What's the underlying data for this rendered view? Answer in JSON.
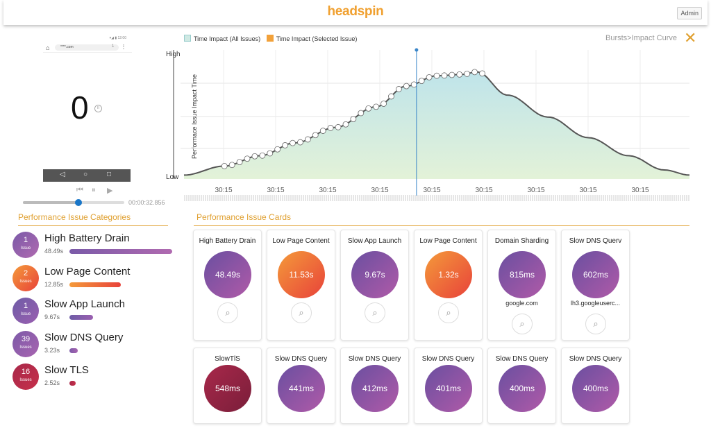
{
  "header": {
    "logo": "headspin",
    "admin_label": "Admin"
  },
  "device": {
    "status_icons": "▾◢ ▮ 12:00",
    "url": "****.com",
    "tab_count": "1",
    "display_number": "0",
    "pause_glyph": "II",
    "nav_back": "◁",
    "nav_home": "○",
    "nav_recent": "□"
  },
  "player": {
    "prev_icon": "⏮",
    "pause_icon": "⏸",
    "play_icon": "▶",
    "progress": 0.55,
    "time": "00:00:32.856"
  },
  "categories_panel": {
    "title": "Performance Issue Categories",
    "items": [
      {
        "count": "1",
        "unit": "Issue",
        "name": "High Battery Drain",
        "time": "48.49s",
        "bar_fraction": 1.0,
        "color1": "#7a5aa8",
        "color2": "#b06ab0"
      },
      {
        "count": "2",
        "unit": "Issues",
        "name": "Low Page Content",
        "time": "12.85s",
        "bar_fraction": 0.5,
        "color1": "#f49a3a",
        "color2": "#e8423a"
      },
      {
        "count": "1",
        "unit": "Issue",
        "name": "Slow App Launch",
        "time": "9.67s",
        "bar_fraction": 0.23,
        "color1": "#6e5ca6",
        "color2": "#9a5fb0"
      },
      {
        "count": "39",
        "unit": "Issues",
        "name": "Slow DNS Query",
        "time": "3.23s",
        "bar_fraction": 0.08,
        "color1": "#7c5aa8",
        "color2": "#a864b0"
      },
      {
        "count": "16",
        "unit": "Issues",
        "name": "Slow TLS",
        "time": "2.52s",
        "bar_fraction": 0.06,
        "color1": "#a8284a",
        "color2": "#c6304a"
      }
    ]
  },
  "chart": {
    "legend_all": "Time Impact (All Issues)",
    "legend_selected": "Time Impact (Selected Issue)",
    "legend_all_color": "#cfe9e3",
    "legend_selected_color": "#f2a13a",
    "breadcrumb": "Bursts>Impact Curve",
    "close_icon": "✕",
    "y_high": "High",
    "y_low": "Low",
    "y_title": "Performace Issue Impact Time"
  },
  "chart_data": {
    "type": "area",
    "title": "",
    "xlabel": "",
    "ylabel": "Performace Issue Impact Time",
    "ylim": [
      0,
      1
    ],
    "x_tick_labels": [
      "30:15",
      "30:15",
      "30:15",
      "30:15",
      "30:15",
      "30:15",
      "30:15",
      "30:15",
      "30:15"
    ],
    "curve_x": [
      0,
      0.08,
      0.15,
      0.22,
      0.3,
      0.38,
      0.44,
      0.5,
      0.55,
      0.58,
      0.64,
      0.72,
      0.8,
      0.88,
      0.95,
      1.0
    ],
    "curve_y": [
      0.03,
      0.1,
      0.18,
      0.28,
      0.4,
      0.56,
      0.72,
      0.8,
      0.81,
      0.83,
      0.65,
      0.48,
      0.32,
      0.18,
      0.07,
      0.03
    ],
    "marker_points_x": [
      0.08,
      0.095,
      0.11,
      0.125,
      0.14,
      0.155,
      0.17,
      0.185,
      0.2,
      0.215,
      0.23,
      0.245,
      0.26,
      0.275,
      0.29,
      0.305,
      0.32,
      0.335,
      0.35,
      0.365,
      0.38,
      0.395,
      0.41,
      0.425,
      0.44,
      0.455,
      0.47,
      0.485,
      0.5,
      0.515,
      0.53,
      0.545,
      0.56,
      0.575,
      0.59
    ],
    "selected_x": 0.46
  },
  "cards_panel": {
    "title": "Performance Issue Cards",
    "zoom_icon": "⌕",
    "cards": [
      {
        "title": "High Battery Drain",
        "value": "48.49s",
        "sub": "",
        "zoom": true,
        "c1": "#6a4fa0",
        "c2": "#b05aa8"
      },
      {
        "title": "Low Page Content",
        "value": "11.53s",
        "sub": "",
        "zoom": true,
        "c1": "#f49a3a",
        "c2": "#e8423a"
      },
      {
        "title": "Slow App Launch",
        "value": "9.67s",
        "sub": "",
        "zoom": true,
        "c1": "#6a4fa0",
        "c2": "#b05aa8"
      },
      {
        "title": "Low Page Content",
        "value": "1.32s",
        "sub": "",
        "zoom": true,
        "c1": "#f49a3a",
        "c2": "#e8423a"
      },
      {
        "title": "Domain Sharding",
        "value": "815ms",
        "sub": "google.com",
        "zoom": true,
        "c1": "#6a4fa0",
        "c2": "#b05aa8"
      },
      {
        "title": "Slow DNS Querv",
        "value": "602ms",
        "sub": "lh3.googleuserc...",
        "zoom": true,
        "c1": "#6a4fa0",
        "c2": "#b05aa8"
      },
      {
        "title": "SlowTlS",
        "value": "548ms",
        "sub": "",
        "zoom": false,
        "c1": "#a8284a",
        "c2": "#7a1e3a"
      },
      {
        "title": "Slow DNS Query",
        "value": "441ms",
        "sub": "",
        "zoom": false,
        "c1": "#6a4fa0",
        "c2": "#b05aa8"
      },
      {
        "title": "Slow DNS Query",
        "value": "412ms",
        "sub": "",
        "zoom": false,
        "c1": "#6a4fa0",
        "c2": "#b05aa8"
      },
      {
        "title": "Slow DNS Query",
        "value": "401ms",
        "sub": "",
        "zoom": false,
        "c1": "#6a4fa0",
        "c2": "#b05aa8"
      },
      {
        "title": "Slow DNS Query",
        "value": "400ms",
        "sub": "",
        "zoom": false,
        "c1": "#6a4fa0",
        "c2": "#b05aa8"
      },
      {
        "title": "Slow DNS Query",
        "value": "400ms",
        "sub": "",
        "zoom": false,
        "c1": "#6a4fa0",
        "c2": "#b05aa8"
      }
    ]
  }
}
